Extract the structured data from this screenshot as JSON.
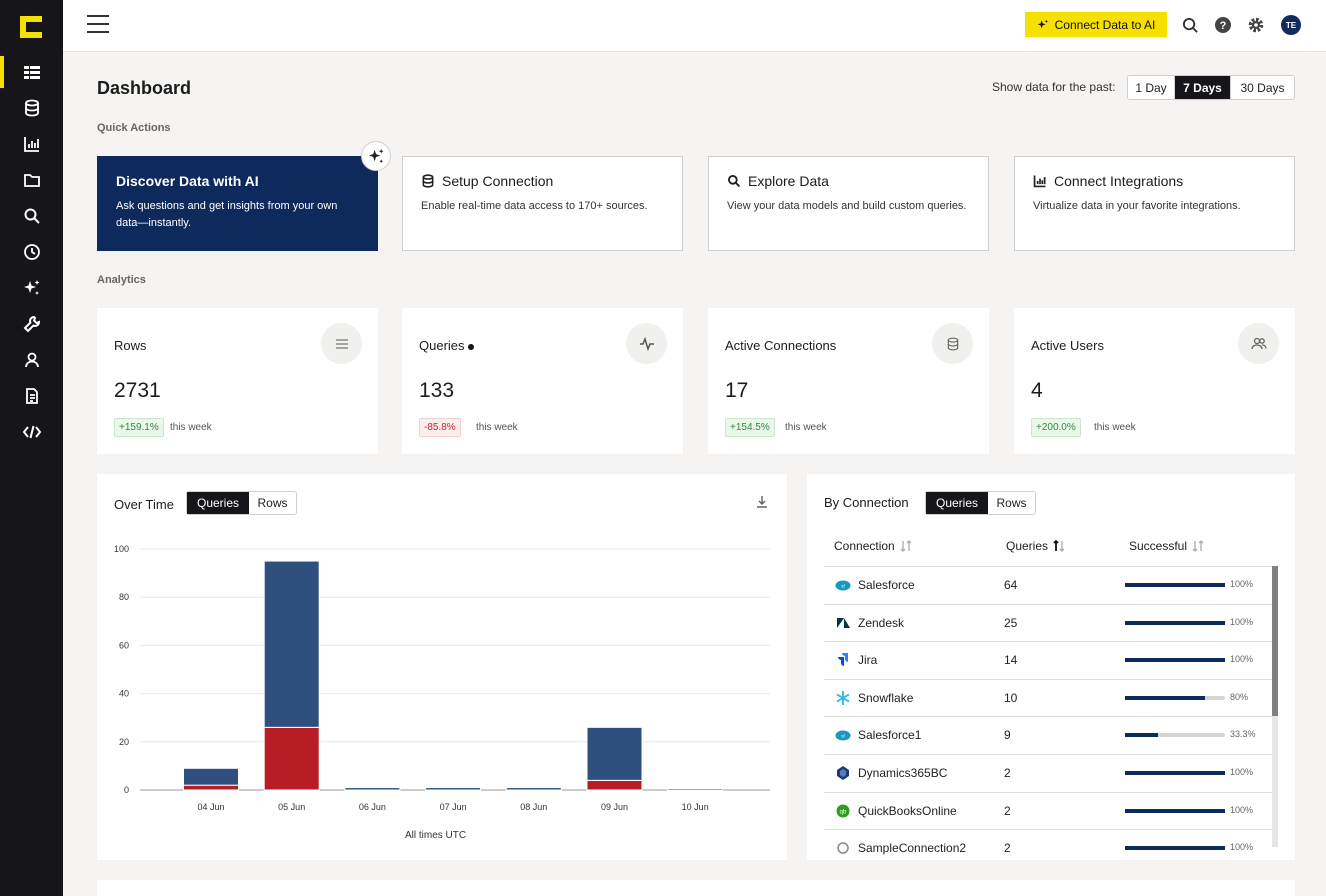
{
  "topbar": {
    "connect_button": "Connect Data to AI",
    "avatar_initials": "TE"
  },
  "page": {
    "title": "Dashboard",
    "range_label": "Show data for the past:",
    "ranges": [
      "1 Day",
      "7 Days",
      "30 Days"
    ],
    "selected_range": "7 Days"
  },
  "quick_actions": {
    "label": "Quick Actions",
    "cards": [
      {
        "title": "Discover Data with AI",
        "desc": "Ask questions and get insights from your own data—instantly.",
        "icon": "sparkle-icon"
      },
      {
        "title": "Setup Connection",
        "desc": "Enable real-time data access to 170+ sources.",
        "icon": "database-icon"
      },
      {
        "title": "Explore Data",
        "desc": "View your data models and build custom queries.",
        "icon": "search-icon"
      },
      {
        "title": "Connect Integrations",
        "desc": "Virtualize data in your favorite integrations.",
        "icon": "bar-chart-icon"
      }
    ]
  },
  "analytics": {
    "label": "Analytics",
    "stats": [
      {
        "title": "Rows",
        "value": "2731",
        "delta": "+159.1%",
        "trend": "up",
        "period": "this week",
        "icon": "list-icon"
      },
      {
        "title": "Queries",
        "value": "133",
        "delta": "-85.8%",
        "trend": "down",
        "period": "this week",
        "icon": "pulse-icon"
      },
      {
        "title": "Active Connections",
        "value": "17",
        "delta": "+154.5%",
        "trend": "up",
        "period": "this week",
        "icon": "database-icon"
      },
      {
        "title": "Active Users",
        "value": "4",
        "delta": "+200.0%",
        "trend": "up",
        "period": "this week",
        "icon": "users-icon"
      }
    ]
  },
  "over_time": {
    "title": "Over Time",
    "toggle": [
      "Queries",
      "Rows"
    ],
    "selected": "Queries",
    "footer": "All times UTC"
  },
  "chart_data": {
    "type": "bar",
    "stacked": true,
    "categories": [
      "04 Jun",
      "05 Jun",
      "06 Jun",
      "07 Jun",
      "08 Jun",
      "09 Jun",
      "10 Jun"
    ],
    "series": [
      {
        "values": [
          2,
          26,
          0,
          0,
          0,
          4,
          0
        ],
        "color": "#b81c25"
      },
      {
        "values": [
          7,
          69,
          1,
          1,
          1,
          22,
          0.5
        ],
        "color": "#2f4f7f"
      }
    ],
    "yticks": [
      0,
      20,
      40,
      60,
      80,
      100
    ],
    "ylim": [
      0,
      100
    ],
    "xlabel": "All times UTC",
    "grid": true
  },
  "by_connection": {
    "title": "By Connection",
    "toggle": [
      "Queries",
      "Rows"
    ],
    "selected": "Queries",
    "columns": [
      "Connection",
      "Queries",
      "Successful"
    ],
    "rows": [
      {
        "name": "Salesforce",
        "queries": "64",
        "pct": "100%",
        "frac": 1.0,
        "icon": "salesforce-icon"
      },
      {
        "name": "Zendesk",
        "queries": "25",
        "pct": "100%",
        "frac": 1.0,
        "icon": "zendesk-icon"
      },
      {
        "name": "Jira",
        "queries": "14",
        "pct": "100%",
        "frac": 1.0,
        "icon": "jira-icon"
      },
      {
        "name": "Snowflake",
        "queries": "10",
        "pct": "80%",
        "frac": 0.8,
        "icon": "snowflake-icon"
      },
      {
        "name": "Salesforce1",
        "queries": "9",
        "pct": "33.3%",
        "frac": 0.333,
        "icon": "salesforce-icon"
      },
      {
        "name": "Dynamics365BC",
        "queries": "2",
        "pct": "100%",
        "frac": 1.0,
        "icon": "dynamics-icon"
      },
      {
        "name": "QuickBooksOnline",
        "queries": "2",
        "pct": "100%",
        "frac": 1.0,
        "icon": "quickbooks-icon"
      },
      {
        "name": "SampleConnection2",
        "queries": "2",
        "pct": "100%",
        "frac": 1.0,
        "icon": "connection-icon"
      }
    ]
  }
}
